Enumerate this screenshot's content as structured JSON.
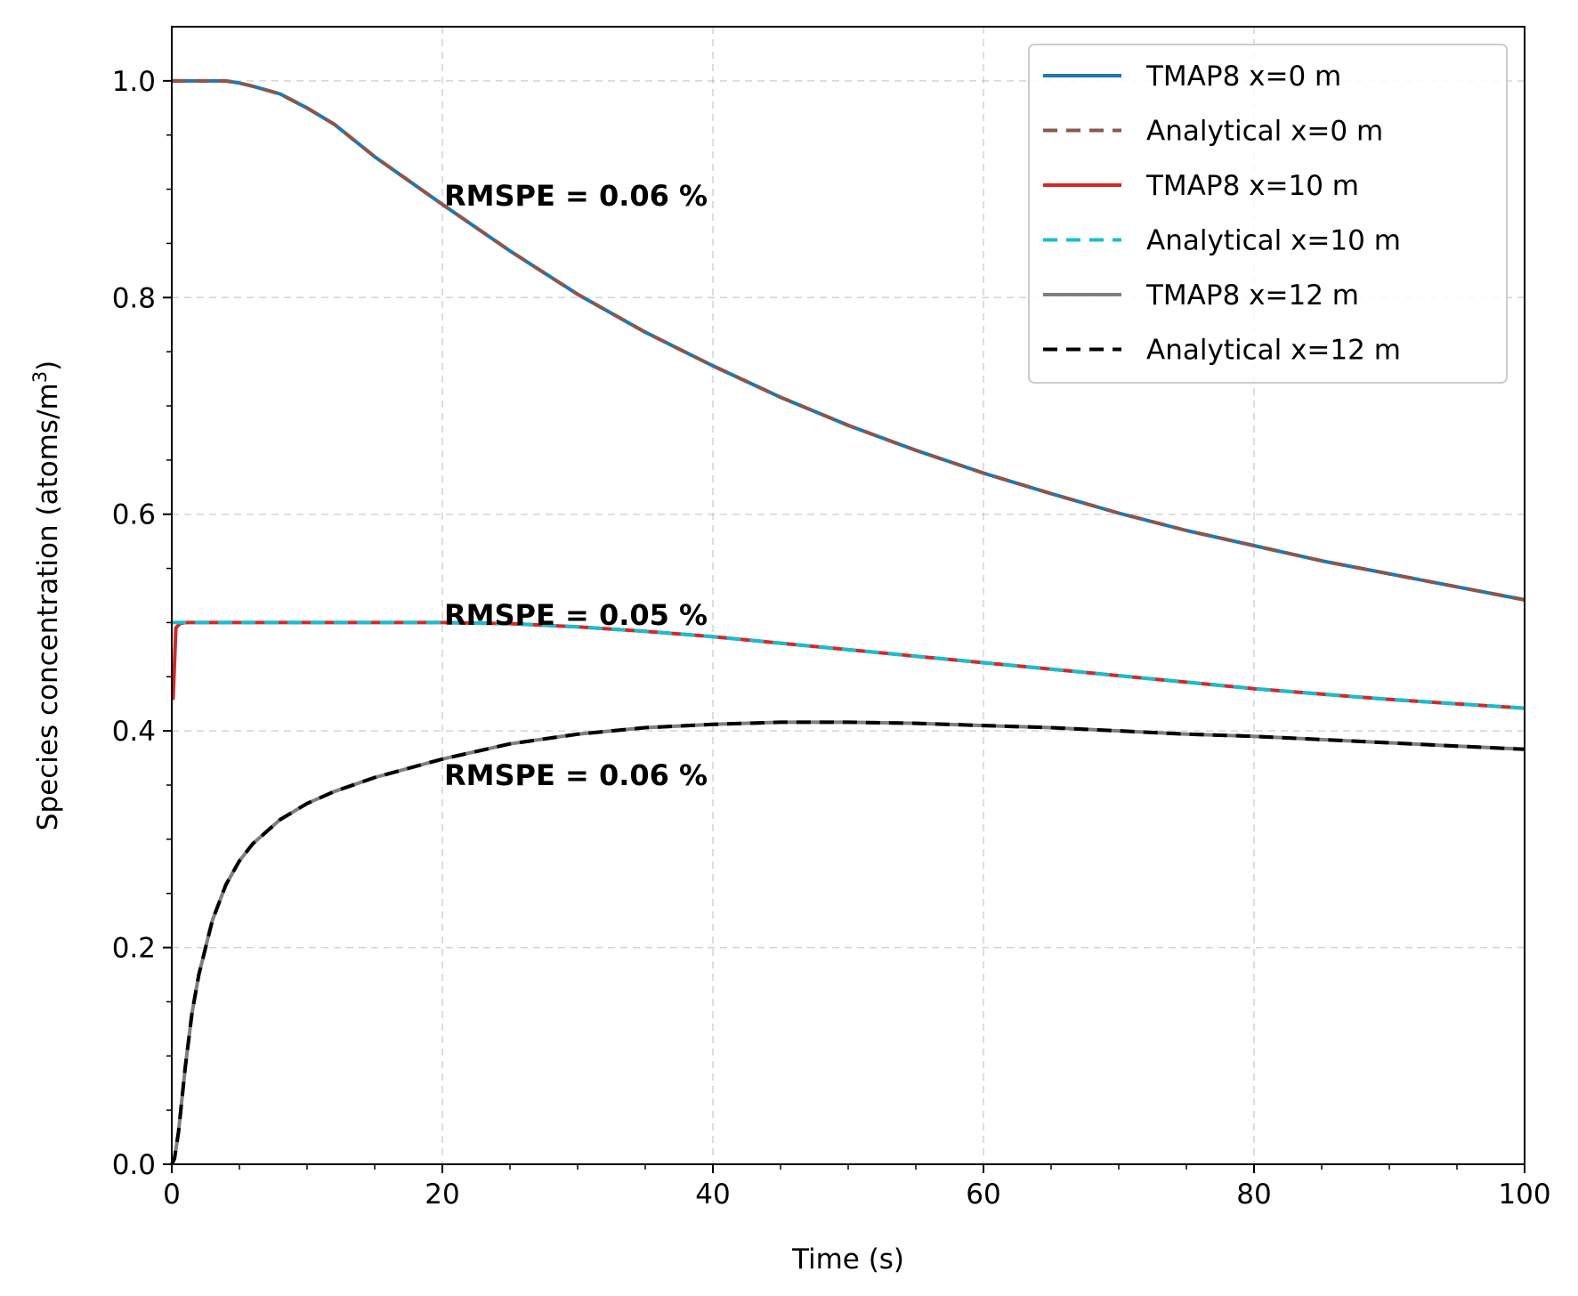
{
  "chart_data": {
    "type": "line",
    "xlabel": "Time (s)",
    "ylabel": "Species concentration (atoms/m",
    "ylabel_sup": "3",
    "ylabel_end": ")",
    "xlim": [
      0,
      100
    ],
    "ylim": [
      0,
      1.05
    ],
    "xticks": [
      0,
      20,
      40,
      60,
      80,
      100
    ],
    "xtick_labels": [
      "0",
      "20",
      "40",
      "60",
      "80",
      "100"
    ],
    "yticks": [
      0.0,
      0.2,
      0.4,
      0.6,
      0.8,
      1.0
    ],
    "ytick_labels": [
      "0.0",
      "0.2",
      "0.4",
      "0.6",
      "0.8",
      "1.0"
    ],
    "grid": true,
    "legend_position": "top-right",
    "series": [
      {
        "name": "TMAP8 x=0 m",
        "color": "#1f77b4",
        "style": "solid",
        "x": [
          0,
          2,
          4,
          5,
          6,
          8,
          10,
          12,
          15,
          20,
          25,
          30,
          35,
          40,
          45,
          50,
          55,
          60,
          65,
          70,
          75,
          80,
          85,
          90,
          95,
          100
        ],
        "y": [
          1.0,
          1.0,
          1.0,
          0.998,
          0.995,
          0.988,
          0.975,
          0.96,
          0.93,
          0.886,
          0.843,
          0.803,
          0.768,
          0.737,
          0.708,
          0.682,
          0.659,
          0.638,
          0.619,
          0.601,
          0.585,
          0.571,
          0.557,
          0.545,
          0.533,
          0.521
        ]
      },
      {
        "name": "Analytical x=0 m",
        "color": "#8c564b",
        "style": "dashed",
        "x": [
          0,
          2,
          4,
          5,
          6,
          8,
          10,
          12,
          15,
          20,
          25,
          30,
          35,
          40,
          45,
          50,
          55,
          60,
          65,
          70,
          75,
          80,
          85,
          90,
          95,
          100
        ],
        "y": [
          1.0,
          1.0,
          1.0,
          0.998,
          0.995,
          0.988,
          0.975,
          0.96,
          0.93,
          0.886,
          0.843,
          0.803,
          0.768,
          0.737,
          0.708,
          0.682,
          0.659,
          0.638,
          0.619,
          0.601,
          0.585,
          0.571,
          0.557,
          0.545,
          0.533,
          0.521
        ]
      },
      {
        "name": "TMAP8 x=10 m",
        "color": "#d62728",
        "style": "solid",
        "x": [
          0,
          0.1,
          0.3,
          0.6,
          1,
          2,
          5,
          10,
          15,
          20,
          25,
          30,
          35,
          40,
          45,
          50,
          55,
          60,
          65,
          70,
          75,
          80,
          85,
          90,
          95,
          100
        ],
        "y": [
          0.43,
          0.43,
          0.495,
          0.499,
          0.5,
          0.5,
          0.5,
          0.5,
          0.5,
          0.5,
          0.499,
          0.496,
          0.492,
          0.487,
          0.481,
          0.475,
          0.469,
          0.463,
          0.457,
          0.451,
          0.445,
          0.439,
          0.434,
          0.429,
          0.425,
          0.421
        ]
      },
      {
        "name": "Analytical x=10 m",
        "color": "#17becf",
        "style": "dashed",
        "x": [
          0,
          1,
          2,
          5,
          10,
          15,
          20,
          25,
          30,
          35,
          40,
          45,
          50,
          55,
          60,
          65,
          70,
          75,
          80,
          85,
          90,
          95,
          100
        ],
        "y": [
          0.5,
          0.5,
          0.5,
          0.5,
          0.5,
          0.5,
          0.5,
          0.499,
          0.496,
          0.492,
          0.487,
          0.481,
          0.475,
          0.469,
          0.463,
          0.457,
          0.451,
          0.445,
          0.439,
          0.434,
          0.429,
          0.425,
          0.421
        ]
      },
      {
        "name": "TMAP8 x=12 m",
        "color": "#7f7f7f",
        "style": "solid",
        "x": [
          0,
          0.2,
          0.5,
          1,
          1.5,
          2,
          3,
          4,
          5,
          6,
          8,
          10,
          12,
          15,
          20,
          25,
          30,
          35,
          40,
          45,
          50,
          55,
          60,
          65,
          70,
          75,
          80,
          85,
          90,
          95,
          100
        ],
        "y": [
          0.0,
          0.005,
          0.03,
          0.09,
          0.14,
          0.175,
          0.225,
          0.258,
          0.28,
          0.296,
          0.318,
          0.333,
          0.344,
          0.357,
          0.374,
          0.388,
          0.397,
          0.403,
          0.406,
          0.408,
          0.408,
          0.407,
          0.405,
          0.403,
          0.4,
          0.397,
          0.395,
          0.392,
          0.389,
          0.386,
          0.383
        ]
      },
      {
        "name": "Analytical x=12 m",
        "color": "#000000",
        "style": "dashed",
        "x": [
          0,
          0.2,
          0.5,
          1,
          1.5,
          2,
          3,
          4,
          5,
          6,
          8,
          10,
          12,
          15,
          20,
          25,
          30,
          35,
          40,
          45,
          50,
          55,
          60,
          65,
          70,
          75,
          80,
          85,
          90,
          95,
          100
        ],
        "y": [
          0.0,
          0.005,
          0.03,
          0.09,
          0.14,
          0.175,
          0.225,
          0.258,
          0.28,
          0.296,
          0.318,
          0.333,
          0.344,
          0.357,
          0.374,
          0.388,
          0.397,
          0.403,
          0.406,
          0.408,
          0.408,
          0.407,
          0.405,
          0.403,
          0.4,
          0.397,
          0.395,
          0.392,
          0.389,
          0.386,
          0.383
        ]
      }
    ],
    "annotations": [
      {
        "text": "RMSPE = 0.06 %",
        "x": 20,
        "y": 0.885
      },
      {
        "text": "RMSPE = 0.05 %",
        "x": 20,
        "y": 0.498
      },
      {
        "text": "RMSPE = 0.06 %",
        "x": 20,
        "y": 0.35
      }
    ]
  }
}
